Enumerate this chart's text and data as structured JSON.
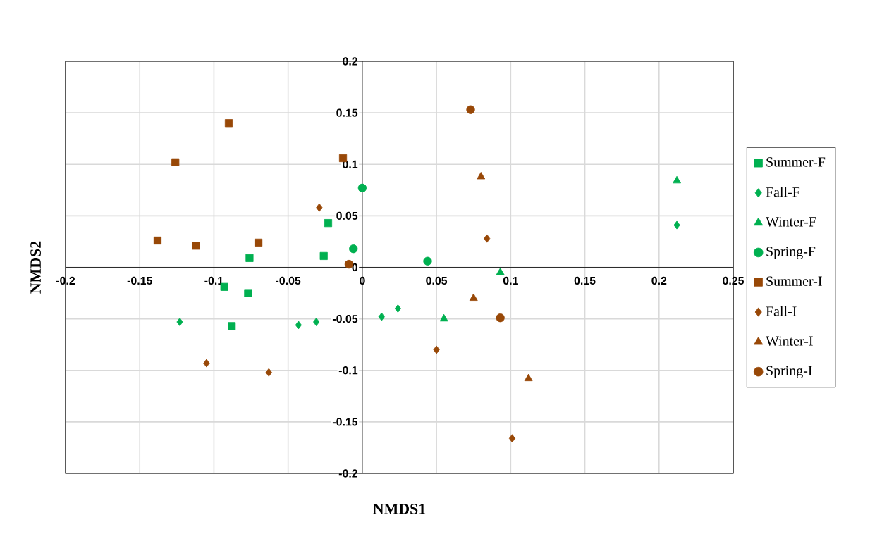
{
  "chart_data": {
    "type": "scatter",
    "xlabel": "NMDS1",
    "ylabel": "NMDS2",
    "xlim": [
      -0.2,
      0.25
    ],
    "ylim": [
      -0.2,
      0.2
    ],
    "xticks": [
      -0.2,
      -0.15,
      -0.1,
      -0.05,
      0,
      0.05,
      0.1,
      0.15,
      0.2,
      0.25
    ],
    "yticks": [
      -0.2,
      -0.15,
      -0.1,
      -0.05,
      0,
      0.05,
      0.1,
      0.15,
      0.2
    ],
    "grid": true,
    "legend": "right",
    "series": [
      {
        "name": "Summer-F",
        "color": "#00b050",
        "marker": "square",
        "x": [
          -0.023,
          -0.026,
          -0.076,
          -0.093,
          -0.077,
          -0.088
        ],
        "values": [
          0.043,
          0.011,
          0.009,
          -0.019,
          -0.025,
          -0.057
        ]
      },
      {
        "name": "Fall-F",
        "color": "#00b050",
        "marker": "diamond",
        "x": [
          -0.123,
          -0.043,
          -0.031,
          0.013,
          0.024,
          0.212
        ],
        "values": [
          -0.053,
          -0.056,
          -0.053,
          -0.048,
          -0.04,
          0.041
        ]
      },
      {
        "name": "Winter-F",
        "color": "#00b050",
        "marker": "triangle",
        "x": [
          0.212,
          0.093,
          0.055
        ],
        "values": [
          0.084,
          -0.005,
          -0.05
        ]
      },
      {
        "name": "Spring-F",
        "color": "#00b050",
        "marker": "circle",
        "x": [
          0,
          -0.006,
          0.044
        ],
        "values": [
          0.077,
          0.018,
          0.006
        ]
      },
      {
        "name": "Summer-I",
        "color": "#984807",
        "marker": "square",
        "x": [
          -0.09,
          -0.126,
          -0.013,
          -0.138,
          -0.112,
          -0.07
        ],
        "values": [
          0.14,
          0.102,
          0.106,
          0.026,
          0.021,
          0.024
        ]
      },
      {
        "name": "Fall-I",
        "color": "#984807",
        "marker": "diamond",
        "x": [
          -0.029,
          0.084,
          -0.105,
          -0.063,
          0.05,
          0.101
        ],
        "values": [
          0.058,
          0.028,
          -0.093,
          -0.102,
          -0.08,
          -0.166
        ]
      },
      {
        "name": "Winter-I",
        "color": "#984807",
        "marker": "triangle",
        "x": [
          0.08,
          0.075,
          0.112
        ],
        "values": [
          0.088,
          -0.03,
          -0.108
        ]
      },
      {
        "name": "Spring-I",
        "color": "#984807",
        "marker": "circle",
        "x": [
          0.073,
          -0.009,
          0.093
        ],
        "values": [
          0.153,
          0.003,
          -0.049
        ]
      }
    ]
  }
}
